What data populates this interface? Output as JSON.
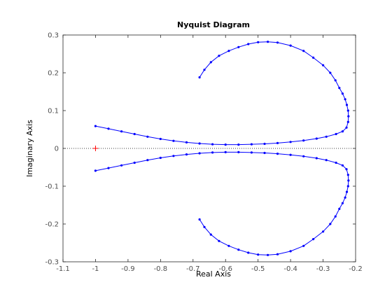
{
  "chart_data": {
    "type": "scatter",
    "title": "Nyquist Diagram",
    "xlabel": "Real Axis",
    "ylabel": "Imaginary Axis",
    "xlim": [
      -1.1,
      -0.2
    ],
    "ylim": [
      -0.3,
      0.3
    ],
    "xticks": [
      -1.1,
      -1,
      -0.9,
      -0.8,
      -0.7,
      -0.6,
      -0.5,
      -0.4,
      -0.3,
      -0.2
    ],
    "xtick_labels": [
      "-1.1",
      "-1",
      "-0.9",
      "-0.8",
      "-0.7",
      "-0.6",
      "-0.5",
      "-0.4",
      "-0.3",
      "-0.2"
    ],
    "yticks": [
      -0.3,
      -0.2,
      -0.1,
      0,
      0.1,
      0.2,
      0.3
    ],
    "ytick_labels": [
      "-0.3",
      "-0.2",
      "-0.1",
      "0",
      "0.1",
      "0.2",
      "0.3"
    ],
    "grid": false,
    "zero_line": {
      "y": 0,
      "style": "dotted",
      "color": "#000000"
    },
    "critical_point": {
      "x": -1,
      "y": 0,
      "marker": "+",
      "color": "#ff0000"
    },
    "series": [
      {
        "color": "#0000ff",
        "points": [
          [
            -1.0,
            0.059
          ],
          [
            -0.96,
            0.052
          ],
          [
            -0.92,
            0.045
          ],
          [
            -0.88,
            0.038
          ],
          [
            -0.84,
            0.031
          ],
          [
            -0.8,
            0.025
          ],
          [
            -0.76,
            0.02
          ],
          [
            -0.72,
            0.016
          ],
          [
            -0.68,
            0.013
          ],
          [
            -0.64,
            0.011
          ],
          [
            -0.6,
            0.01
          ],
          [
            -0.56,
            0.01
          ],
          [
            -0.52,
            0.011
          ],
          [
            -0.48,
            0.012
          ],
          [
            -0.44,
            0.014
          ],
          [
            -0.4,
            0.017
          ],
          [
            -0.36,
            0.021
          ],
          [
            -0.32,
            0.026
          ],
          [
            -0.29,
            0.031
          ],
          [
            -0.26,
            0.038
          ],
          [
            -0.24,
            0.045
          ],
          [
            -0.228,
            0.055
          ],
          [
            -0.223,
            0.07
          ],
          [
            -0.222,
            0.085
          ],
          [
            -0.223,
            0.1
          ],
          [
            -0.227,
            0.115
          ],
          [
            -0.232,
            0.13
          ],
          [
            -0.24,
            0.145
          ],
          [
            -0.25,
            0.16
          ],
          [
            -0.262,
            0.18
          ],
          [
            -0.278,
            0.2
          ],
          [
            -0.3,
            0.22
          ],
          [
            -0.33,
            0.24
          ],
          [
            -0.36,
            0.258
          ],
          [
            -0.4,
            0.272
          ],
          [
            -0.44,
            0.28
          ],
          [
            -0.47,
            0.282
          ],
          [
            -0.5,
            0.281
          ],
          [
            -0.53,
            0.276
          ],
          [
            -0.56,
            0.268
          ],
          [
            -0.59,
            0.258
          ],
          [
            -0.62,
            0.245
          ],
          [
            -0.645,
            0.228
          ],
          [
            -0.665,
            0.208
          ],
          [
            -0.68,
            0.188
          ]
        ]
      },
      {
        "color": "#0000ff",
        "points": [
          [
            -1.0,
            -0.059
          ],
          [
            -0.96,
            -0.052
          ],
          [
            -0.92,
            -0.045
          ],
          [
            -0.88,
            -0.038
          ],
          [
            -0.84,
            -0.031
          ],
          [
            -0.8,
            -0.025
          ],
          [
            -0.76,
            -0.02
          ],
          [
            -0.72,
            -0.016
          ],
          [
            -0.68,
            -0.013
          ],
          [
            -0.64,
            -0.011
          ],
          [
            -0.6,
            -0.01
          ],
          [
            -0.56,
            -0.01
          ],
          [
            -0.52,
            -0.011
          ],
          [
            -0.48,
            -0.012
          ],
          [
            -0.44,
            -0.014
          ],
          [
            -0.4,
            -0.017
          ],
          [
            -0.36,
            -0.021
          ],
          [
            -0.32,
            -0.026
          ],
          [
            -0.29,
            -0.031
          ],
          [
            -0.26,
            -0.038
          ],
          [
            -0.24,
            -0.045
          ],
          [
            -0.228,
            -0.055
          ],
          [
            -0.223,
            -0.07
          ],
          [
            -0.222,
            -0.085
          ],
          [
            -0.223,
            -0.1
          ],
          [
            -0.227,
            -0.115
          ],
          [
            -0.232,
            -0.13
          ],
          [
            -0.24,
            -0.145
          ],
          [
            -0.25,
            -0.16
          ],
          [
            -0.262,
            -0.18
          ],
          [
            -0.278,
            -0.2
          ],
          [
            -0.3,
            -0.22
          ],
          [
            -0.33,
            -0.24
          ],
          [
            -0.36,
            -0.258
          ],
          [
            -0.4,
            -0.272
          ],
          [
            -0.44,
            -0.28
          ],
          [
            -0.47,
            -0.282
          ],
          [
            -0.5,
            -0.281
          ],
          [
            -0.53,
            -0.276
          ],
          [
            -0.56,
            -0.268
          ],
          [
            -0.59,
            -0.258
          ],
          [
            -0.62,
            -0.245
          ],
          [
            -0.645,
            -0.228
          ],
          [
            -0.665,
            -0.208
          ],
          [
            -0.68,
            -0.188
          ]
        ]
      }
    ]
  }
}
